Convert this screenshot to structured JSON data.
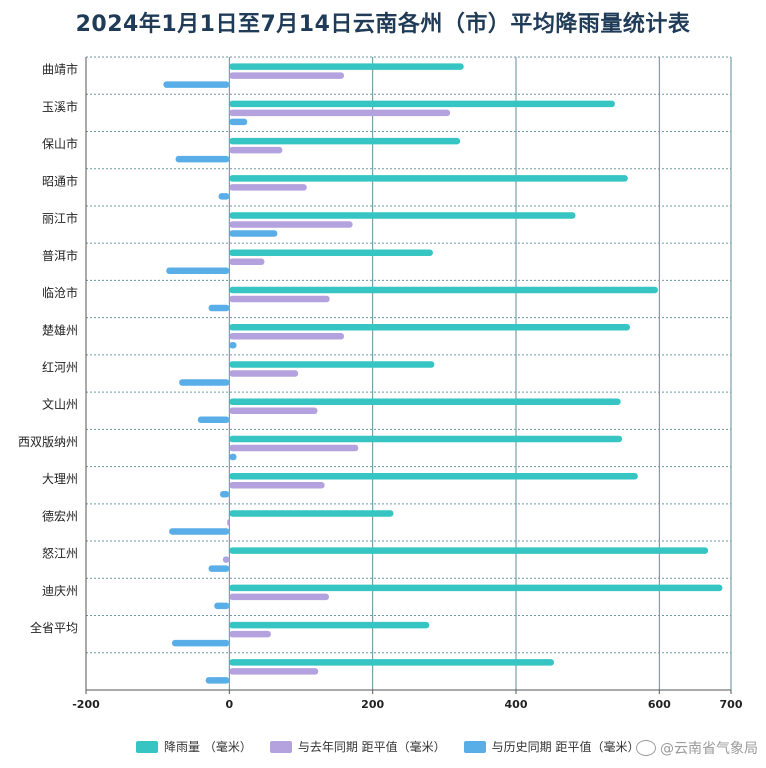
{
  "chart_data": {
    "type": "bar",
    "orientation": "horizontal",
    "title": "2024年1月1日至7月14日云南各州（市）平均降雨量统计表",
    "categories": [
      "曲靖市",
      "玉溪市",
      "保山市",
      "昭通市",
      "丽江市",
      "普洱市",
      "临沧市",
      "楚雄州",
      "红河州",
      "文山州",
      "西双版纳州",
      "大理州",
      "德宏州",
      "怒江州",
      "迪庆州",
      "全省平均",
      ""
    ],
    "series": [
      {
        "name": "降雨量 （毫米）",
        "color": "#36c5c3",
        "values": [
          327,
          538,
          322,
          556,
          483,
          284,
          598,
          559,
          286,
          546,
          548,
          570,
          229,
          668,
          688,
          279,
          453
        ]
      },
      {
        "name": "与去年同期 距平值（毫米）",
        "color": "#b3a2de",
        "values": [
          160,
          308,
          74,
          108,
          172,
          49,
          140,
          160,
          96,
          123,
          180,
          133,
          -3,
          -9,
          139,
          58,
          124
        ]
      },
      {
        "name": "与历史同期 距平值（毫米）",
        "color": "#5aaee8",
        "values": [
          -92,
          25,
          -75,
          -15,
          67,
          -88,
          -29,
          10,
          -70,
          -44,
          10,
          -13,
          -84,
          -29,
          -21,
          -80,
          -33
        ]
      }
    ],
    "xlim": [
      -200,
      700
    ],
    "xticks": [
      -200,
      0,
      200,
      400,
      600,
      700
    ],
    "grid": true,
    "legend_position": "bottom"
  },
  "watermark": "@云南省气象局"
}
